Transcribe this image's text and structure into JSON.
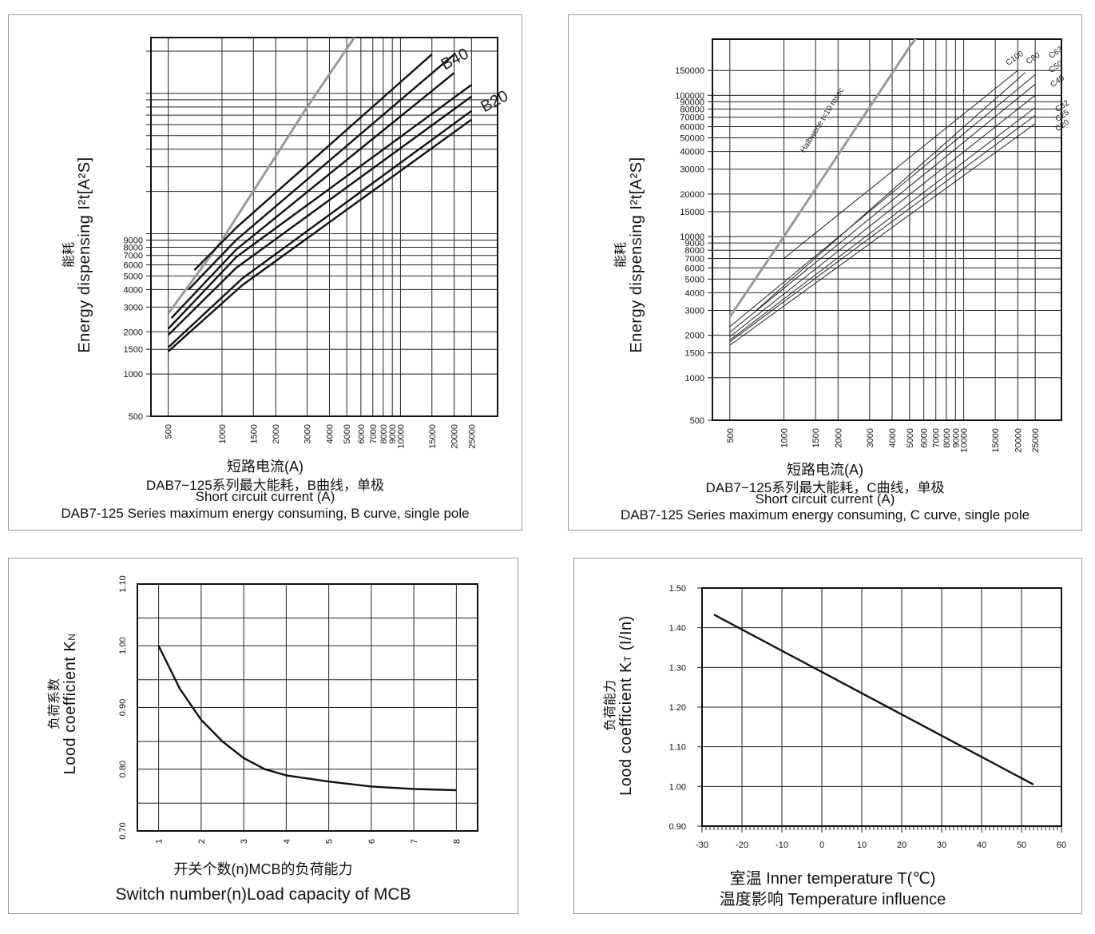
{
  "chart_data": [
    {
      "id": "b-curve",
      "type": "line",
      "ylabel_cn": "能耗",
      "ylabel_en": "Energy dispensing I²t[A²S]",
      "xlabel_cn": "短路电流(A)",
      "caption_cn": "DAB7−125系列最大能耗，B曲线，单极",
      "xlabel_en": "Short circuit current (A)",
      "caption_en": "DAB7-125 Series maximum energy consuming, B curve, single pole",
      "xscale": "log",
      "yscale": "log",
      "xlim": [
        400,
        35000
      ],
      "ylim": [
        500,
        250000
      ],
      "xticks": [
        500,
        1000,
        1500,
        2000,
        3000,
        4000,
        5000,
        6000,
        7000,
        8000,
        9000,
        10000,
        15000,
        20000,
        25000
      ],
      "xgrid": [
        500,
        1000,
        1500,
        2000,
        3000,
        4000,
        5000,
        6000,
        7000,
        8000,
        9000,
        10000,
        15000,
        20000,
        25000
      ],
      "yticks": [
        500,
        1000,
        1500,
        2000,
        3000,
        4000,
        5000,
        6000,
        7000,
        8000,
        9000
      ],
      "ygrid": [
        500,
        1000,
        1500,
        2000,
        3000,
        4000,
        5000,
        6000,
        7000,
        8000,
        9000,
        10000,
        20000,
        30000,
        40000,
        50000,
        60000,
        70000,
        80000,
        90000,
        100000,
        200000
      ],
      "grid": true,
      "series": [
        {
          "role": "reference",
          "color": "#9a9a9a",
          "points": [
            [
              500,
              2700
            ],
            [
              1000,
              9000
            ],
            [
              3000,
              80000
            ],
            [
              6500,
              340000
            ]
          ]
        },
        {
          "name": "B40",
          "color": "#111111",
          "points": [
            [
              700,
              5500
            ],
            [
              1200,
              11000
            ],
            [
              15000,
              190000
            ]
          ]
        },
        {
          "color": "#111111",
          "points": [
            [
              650,
              4000
            ],
            [
              1200,
              9000
            ],
            [
              20000,
              190000
            ]
          ]
        },
        {
          "color": "#111111",
          "points": [
            [
              520,
              2500
            ],
            [
              1200,
              7700
            ],
            [
              20000,
              140000
            ]
          ]
        },
        {
          "color": "#111111",
          "points": [
            [
              500,
              2100
            ],
            [
              1200,
              6800
            ],
            [
              25000,
              115000
            ]
          ]
        },
        {
          "name": "B20",
          "color": "#111111",
          "points": [
            [
              500,
              1900
            ],
            [
              1200,
              5700
            ],
            [
              25000,
              95000
            ]
          ]
        },
        {
          "color": "#111111",
          "points": [
            [
              500,
              1550
            ],
            [
              1300,
              4800
            ],
            [
              25000,
              75000
            ]
          ]
        },
        {
          "color": "#111111",
          "points": [
            [
              500,
              1450
            ],
            [
              1300,
              4300
            ],
            [
              25000,
              65000
            ]
          ]
        }
      ]
    },
    {
      "id": "c-curve",
      "type": "line",
      "ylabel_cn": "能耗",
      "ylabel_en": "Energy dispensing I²t[A²S]",
      "xlabel_cn": "短路电流(A)",
      "caption_cn": "DAB7−125系列最大能耗，C曲线，单极",
      "xlabel_en": "Short circuit current (A)",
      "caption_en": "DAB7-125 Series maximum energy consuming, C curve, single pole",
      "xscale": "log",
      "yscale": "log",
      "xlim": [
        400,
        35000
      ],
      "ylim": [
        500,
        250000
      ],
      "xticks": [
        500,
        1000,
        1500,
        2000,
        3000,
        4000,
        5000,
        6000,
        7000,
        8000,
        9000,
        10000,
        15000,
        20000,
        25000
      ],
      "xgrid": [
        500,
        1000,
        1500,
        2000,
        3000,
        4000,
        5000,
        6000,
        7000,
        8000,
        9000,
        10000,
        15000,
        20000,
        25000
      ],
      "yticks": [
        500,
        1000,
        1500,
        2000,
        3000,
        4000,
        5000,
        6000,
        7000,
        8000,
        9000,
        10000,
        15000,
        20000,
        30000,
        40000,
        50000,
        60000,
        70000,
        80000,
        90000,
        100000,
        150000
      ],
      "ygrid": [
        500,
        1000,
        1500,
        2000,
        3000,
        4000,
        5000,
        6000,
        7000,
        8000,
        9000,
        10000,
        15000,
        20000,
        30000,
        40000,
        50000,
        60000,
        70000,
        80000,
        90000,
        100000,
        150000
      ],
      "grid": true,
      "reference_label": "Halbwene t=10 msec",
      "series": [
        {
          "role": "reference",
          "color": "#9a9a9a",
          "points": [
            [
              500,
              2700
            ],
            [
              1000,
              10000
            ],
            [
              5000,
              220000
            ],
            [
              6000,
              300000
            ]
          ]
        },
        {
          "name": "C100",
          "color": "#222222",
          "points": [
            [
              1000,
              7000
            ],
            [
              20000,
              150000
            ]
          ]
        },
        {
          "name": "C80",
          "color": "#222222",
          "points": [
            [
              700,
              3000
            ],
            [
              22000,
              145000
            ]
          ]
        },
        {
          "name": "C63",
          "color": "#222222",
          "points": [
            [
              500,
              2300
            ],
            [
              25000,
              140000
            ]
          ]
        },
        {
          "name": "C50",
          "color": "#222222",
          "points": [
            [
              500,
              2100
            ],
            [
              25000,
              120000
            ]
          ]
        },
        {
          "name": "C40",
          "color": "#222222",
          "points": [
            [
              500,
              1950
            ],
            [
              25000,
              100000
            ]
          ]
        },
        {
          "name": "C32",
          "color": "#222222",
          "points": [
            [
              500,
              1850
            ],
            [
              25000,
              82000
            ]
          ]
        },
        {
          "name": "C25",
          "color": "#222222",
          "points": [
            [
              500,
              1800
            ],
            [
              25000,
              72000
            ]
          ]
        },
        {
          "name": "C20",
          "color": "#222222",
          "points": [
            [
              500,
              1700
            ],
            [
              25000,
              63000
            ]
          ]
        }
      ]
    },
    {
      "id": "load-n",
      "type": "line",
      "ylabel_cn": "负荷系数",
      "ylabel_en": "Lood coefficient K",
      "ylabel_sub": "N",
      "xlabel_cn": "开关个数(n)MCB的负荷能力",
      "caption_en": "Switch number(n)Load capacity of MCB",
      "xlim": [
        0.5,
        8.5
      ],
      "ylim": [
        0.7,
        1.1
      ],
      "xticks": [
        1,
        2,
        3,
        4,
        5,
        6,
        7,
        8
      ],
      "xtick_labels": [
        "1",
        "2",
        "3",
        "4",
        "5",
        "6",
        "7",
        "8"
      ],
      "yticks": [
        0.7,
        0.8,
        0.9,
        1.0,
        1.1
      ],
      "ytick_labels": [
        "0.70",
        "0.80",
        "0.90",
        "1.00",
        "1.10"
      ],
      "ygrid": [
        0.7,
        0.745,
        0.8,
        0.845,
        0.9,
        0.945,
        1.0,
        1.045,
        1.1
      ],
      "grid": true,
      "series": [
        {
          "color": "#111111",
          "points": [
            [
              1,
              1.0
            ],
            [
              1.5,
              0.93
            ],
            [
              2,
              0.88
            ],
            [
              2.5,
              0.845
            ],
            [
              3,
              0.818
            ],
            [
              3.5,
              0.8
            ],
            [
              4,
              0.79
            ],
            [
              5,
              0.78
            ],
            [
              6,
              0.772
            ],
            [
              7,
              0.768
            ],
            [
              8,
              0.766
            ]
          ]
        }
      ]
    },
    {
      "id": "load-t",
      "type": "line",
      "ylabel_cn": "负荷能力",
      "ylabel_en": "Lood coefficient K",
      "ylabel_sub": "T",
      "ylabel_unit": " (I/In)",
      "xlabel": "室温 Inner temperature T(℃)",
      "caption": "温度影响 Temperature influence",
      "xlim": [
        -30,
        60
      ],
      "ylim": [
        0.9,
        1.5
      ],
      "xticks": [
        -30,
        -20,
        -10,
        0,
        10,
        20,
        30,
        40,
        50,
        60
      ],
      "xtick_labels": [
        "-30",
        "-20",
        "-10",
        "0",
        "10",
        "20",
        "30",
        "40",
        "50",
        "60"
      ],
      "yticks": [
        0.9,
        1.0,
        1.1,
        1.2,
        1.3,
        1.4,
        1.5
      ],
      "ytick_labels": [
        "0.90",
        "1.00",
        "1.10",
        "1.20",
        "1.30",
        "1.40",
        "1.50"
      ],
      "minor_xticks_every": 1,
      "grid": true,
      "series": [
        {
          "color": "#111111",
          "points": [
            [
              -27,
              1.433
            ],
            [
              53,
              1.005
            ]
          ]
        }
      ]
    }
  ]
}
